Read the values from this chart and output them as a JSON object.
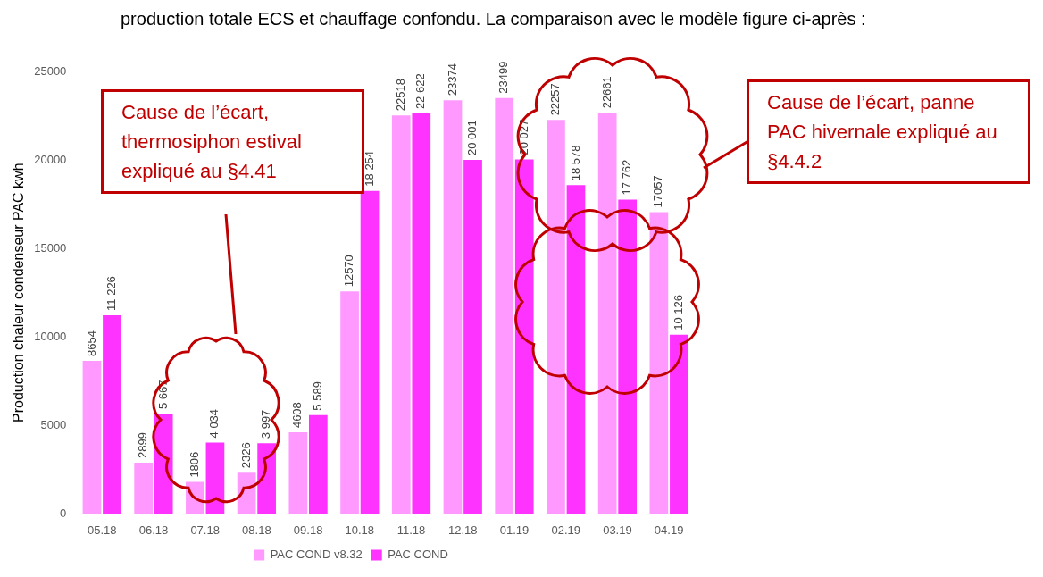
{
  "chart_data": {
    "type": "bar",
    "ylabel": "Production chaleur condenseur PAC kwh",
    "categories": [
      "05.18",
      "06.18",
      "07.18",
      "08.18",
      "09.18",
      "10.18",
      "11.18",
      "12.18",
      "01.19",
      "02.19",
      "03.19",
      "04.19"
    ],
    "series": [
      {
        "name": "PAC COND v8.32",
        "color": "#ff99ff",
        "values": [
          8654,
          2899,
          1806,
          2326,
          4608,
          12570,
          22518,
          23374,
          23499,
          22257,
          22661,
          17057
        ],
        "value_labels": [
          "8654",
          "2899",
          "1806",
          "2326",
          "4608",
          "12570",
          "22518",
          "23374",
          "23499",
          "22257",
          "22661",
          "17057"
        ]
      },
      {
        "name": "PAC COND",
        "color": "#ff33ff",
        "values": [
          11226,
          5667,
          4034,
          3997,
          5589,
          18254,
          22622,
          20001,
          20027,
          18578,
          17762,
          10126
        ],
        "value_labels": [
          "11 226",
          "5 667",
          "4 034",
          "3 997",
          "5 589",
          "18 254",
          "22 622",
          "20 001",
          "20 027",
          "18 578",
          "17 762",
          "10 126"
        ]
      }
    ],
    "ylim": [
      0,
      25000
    ],
    "yticks": [
      0,
      5000,
      10000,
      15000,
      20000,
      25000
    ],
    "grid": false,
    "legend": "bottom",
    "annotations": [
      "production totale ECS et chauffage confondu. La comparaison avec le modèle figure ci-après :",
      "Cause de l’écart, thermosiphon estival expliqué au §4.41",
      "Cause de l’écart, panne PAC hivernale expliqué au §4.4.2"
    ]
  }
}
